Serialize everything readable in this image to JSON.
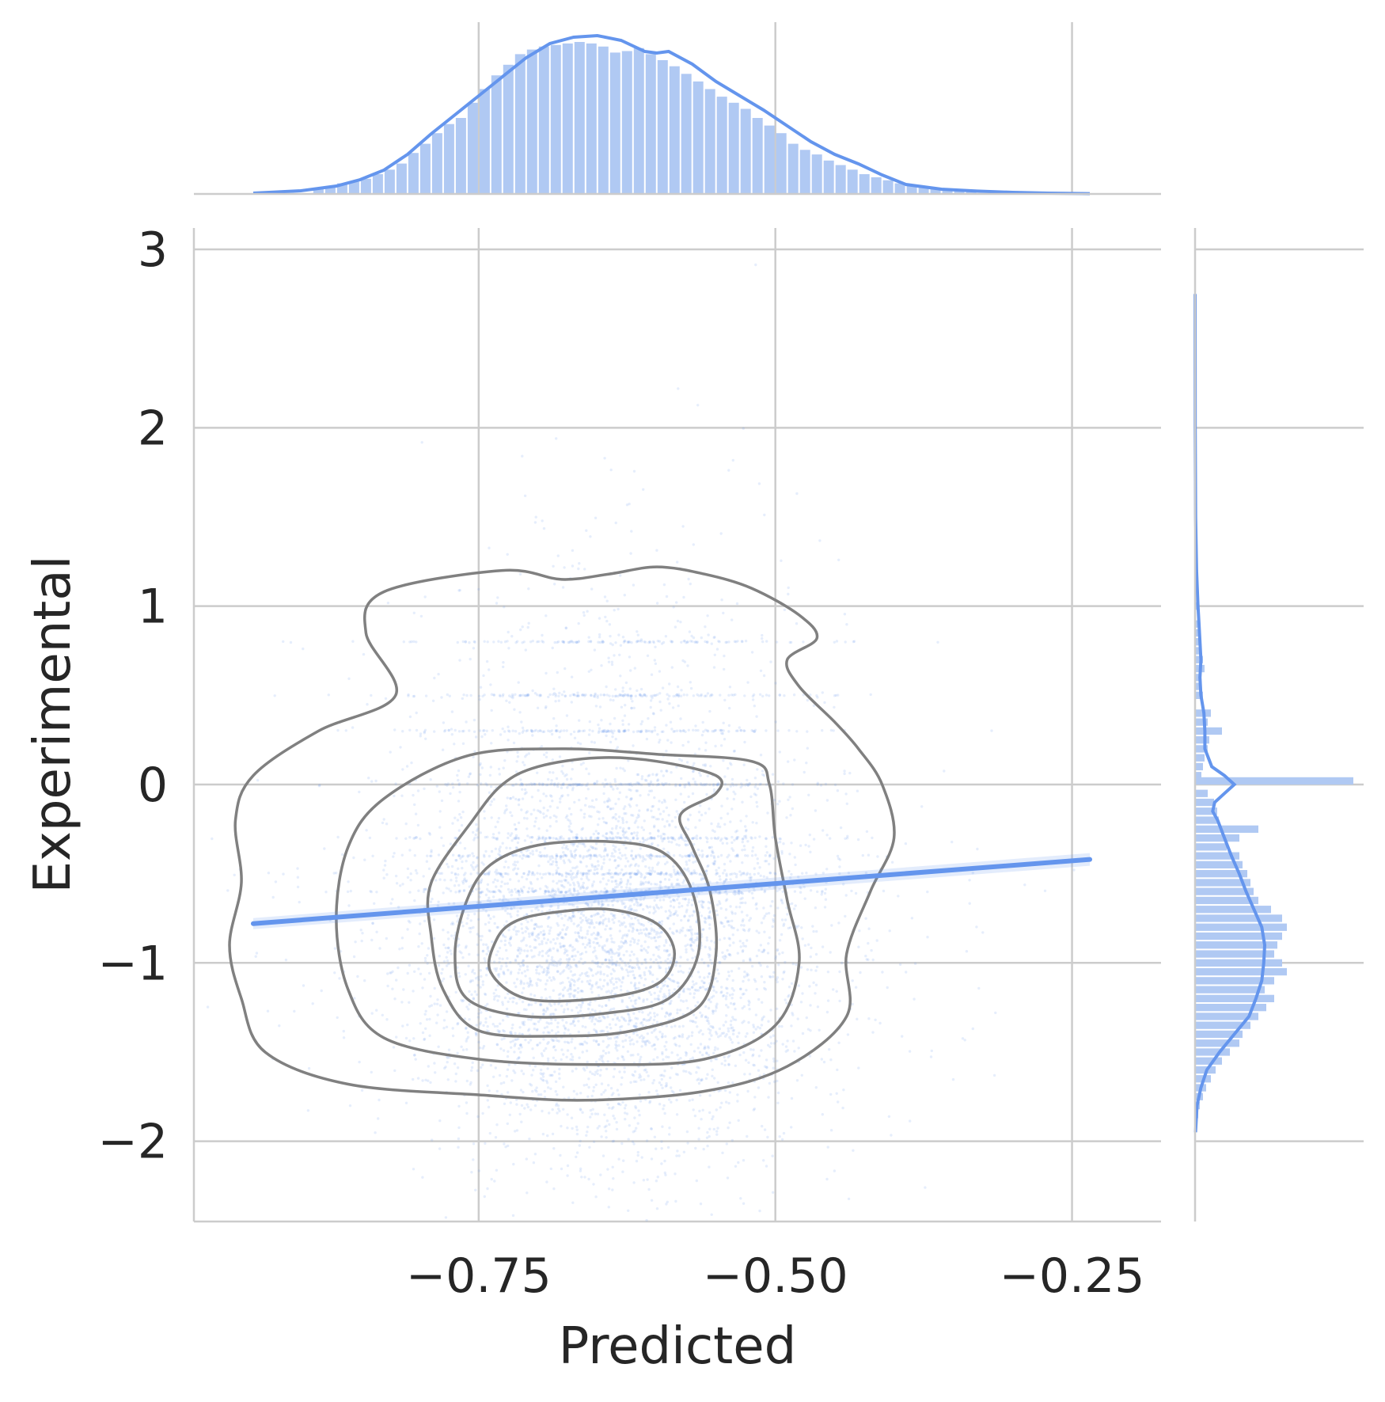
{
  "chart_data": {
    "type": "scatter",
    "kind": "joint plot (scatter + KDE contours + regression line + marginal histograms with KDE)",
    "xlabel": "Predicted",
    "ylabel": "Experimental",
    "xlim": [
      -0.99,
      -0.175
    ],
    "ylim": [
      -2.45,
      3.12
    ],
    "x_ticks": [
      -0.75,
      -0.5,
      -0.25
    ],
    "x_tick_labels": [
      "−0.75",
      "−0.50",
      "−0.25"
    ],
    "y_ticks": [
      -2,
      -1,
      0,
      1,
      2,
      3
    ],
    "y_tick_labels": [
      "−2",
      "−1",
      "0",
      "1",
      "2",
      "3"
    ],
    "grid": true,
    "colors": {
      "points": "#6495ED",
      "marginal_bars": "#b0c9f3",
      "contours": "#808080",
      "grid": "#cccccc"
    },
    "regression_line": {
      "x": [
        -0.94,
        -0.235
      ],
      "y": [
        -0.78,
        -0.42
      ]
    },
    "scatter_summary": {
      "n_points_approx": 6000,
      "x_mean": -0.64,
      "x_sd": 0.085,
      "y_mode": -0.95,
      "y_sd": 0.55,
      "note": "dense cloud with horizontal streaks at y = 0, -0.3, -0.5, 0.3, 0.5, 0.8"
    },
    "kde_contours": [
      {
        "level": 1,
        "points": [
          [
            -0.83,
            1.08
          ],
          [
            -0.73,
            1.2
          ],
          [
            -0.68,
            1.15
          ],
          [
            -0.64,
            1.18
          ],
          [
            -0.6,
            1.22
          ],
          [
            -0.56,
            1.18
          ],
          [
            -0.52,
            1.1
          ],
          [
            -0.48,
            0.95
          ],
          [
            -0.465,
            0.82
          ],
          [
            -0.49,
            0.7
          ],
          [
            -0.48,
            0.55
          ],
          [
            -0.45,
            0.35
          ],
          [
            -0.43,
            0.2
          ],
          [
            -0.41,
            0.0
          ],
          [
            -0.4,
            -0.3
          ],
          [
            -0.42,
            -0.6
          ],
          [
            -0.44,
            -0.95
          ],
          [
            -0.44,
            -1.3
          ],
          [
            -0.49,
            -1.58
          ],
          [
            -0.56,
            -1.72
          ],
          [
            -0.66,
            -1.77
          ],
          [
            -0.75,
            -1.74
          ],
          [
            -0.86,
            -1.68
          ],
          [
            -0.93,
            -1.5
          ],
          [
            -0.95,
            -1.2
          ],
          [
            -0.96,
            -0.9
          ],
          [
            -0.95,
            -0.55
          ],
          [
            -0.955,
            -0.2
          ],
          [
            -0.94,
            0.05
          ],
          [
            -0.885,
            0.3
          ],
          [
            -0.82,
            0.5
          ],
          [
            -0.845,
            0.85
          ]
        ]
      },
      {
        "level": 2,
        "points": [
          [
            -0.76,
            0.16
          ],
          [
            -0.68,
            0.2
          ],
          [
            -0.6,
            0.17
          ],
          [
            -0.52,
            0.13
          ],
          [
            -0.505,
            0.0
          ],
          [
            -0.5,
            -0.3
          ],
          [
            -0.49,
            -0.65
          ],
          [
            -0.48,
            -1.0
          ],
          [
            -0.5,
            -1.35
          ],
          [
            -0.56,
            -1.54
          ],
          [
            -0.65,
            -1.57
          ],
          [
            -0.75,
            -1.54
          ],
          [
            -0.83,
            -1.42
          ],
          [
            -0.86,
            -1.15
          ],
          [
            -0.87,
            -0.75
          ],
          [
            -0.86,
            -0.35
          ],
          [
            -0.83,
            -0.08
          ]
        ]
      },
      {
        "level": 3,
        "points": [
          [
            -0.7,
            0.1
          ],
          [
            -0.65,
            0.15
          ],
          [
            -0.6,
            0.13
          ],
          [
            -0.55,
            0.05
          ],
          [
            -0.55,
            -0.05
          ],
          [
            -0.58,
            -0.17
          ],
          [
            -0.57,
            -0.35
          ],
          [
            -0.555,
            -0.6
          ],
          [
            -0.55,
            -0.95
          ],
          [
            -0.565,
            -1.25
          ],
          [
            -0.62,
            -1.38
          ],
          [
            -0.68,
            -1.41
          ],
          [
            -0.75,
            -1.38
          ],
          [
            -0.78,
            -1.15
          ],
          [
            -0.79,
            -0.85
          ],
          [
            -0.79,
            -0.55
          ],
          [
            -0.755,
            -0.2
          ],
          [
            -0.73,
            0.0
          ]
        ]
      },
      {
        "level": 4,
        "points": [
          [
            -0.7,
            -0.34
          ],
          [
            -0.64,
            -0.32
          ],
          [
            -0.595,
            -0.38
          ],
          [
            -0.57,
            -0.6
          ],
          [
            -0.565,
            -0.95
          ],
          [
            -0.59,
            -1.2
          ],
          [
            -0.64,
            -1.28
          ],
          [
            -0.71,
            -1.3
          ],
          [
            -0.76,
            -1.2
          ],
          [
            -0.77,
            -0.95
          ],
          [
            -0.76,
            -0.65
          ],
          [
            -0.74,
            -0.45
          ]
        ]
      },
      {
        "level": 5,
        "points": [
          [
            -0.69,
            -0.72
          ],
          [
            -0.64,
            -0.7
          ],
          [
            -0.6,
            -0.78
          ],
          [
            -0.585,
            -0.95
          ],
          [
            -0.6,
            -1.12
          ],
          [
            -0.65,
            -1.2
          ],
          [
            -0.71,
            -1.2
          ],
          [
            -0.74,
            -1.05
          ],
          [
            -0.735,
            -0.87
          ],
          [
            -0.72,
            -0.77
          ]
        ]
      }
    ],
    "marginal_x": {
      "bins": {
        "x": [
          -0.885,
          -0.875,
          -0.865,
          -0.855,
          -0.845,
          -0.835,
          -0.825,
          -0.815,
          -0.805,
          -0.795,
          -0.785,
          -0.775,
          -0.765,
          -0.755,
          -0.745,
          -0.735,
          -0.725,
          -0.715,
          -0.705,
          -0.695,
          -0.685,
          -0.675,
          -0.665,
          -0.655,
          -0.645,
          -0.635,
          -0.625,
          -0.615,
          -0.605,
          -0.595,
          -0.585,
          -0.575,
          -0.565,
          -0.555,
          -0.545,
          -0.535,
          -0.525,
          -0.515,
          -0.505,
          -0.495,
          -0.485,
          -0.475,
          -0.465,
          -0.455,
          -0.445,
          -0.435,
          -0.425,
          -0.415,
          -0.405,
          -0.395,
          -0.385,
          -0.375,
          -0.365,
          -0.355,
          -0.345,
          -0.335
        ],
        "density": [
          0.04,
          0.05,
          0.07,
          0.08,
          0.1,
          0.13,
          0.16,
          0.2,
          0.27,
          0.33,
          0.4,
          0.46,
          0.5,
          0.6,
          0.69,
          0.78,
          0.85,
          0.92,
          0.95,
          0.97,
          0.98,
          0.99,
          1.0,
          0.99,
          0.97,
          0.93,
          0.94,
          0.96,
          0.92,
          0.88,
          0.84,
          0.79,
          0.74,
          0.69,
          0.64,
          0.6,
          0.56,
          0.5,
          0.45,
          0.4,
          0.33,
          0.29,
          0.26,
          0.22,
          0.19,
          0.16,
          0.13,
          0.11,
          0.09,
          0.07,
          0.06,
          0.05,
          0.04,
          0.03,
          0.02,
          0.015
        ]
      },
      "kde": {
        "x": [
          -0.94,
          -0.9,
          -0.87,
          -0.85,
          -0.83,
          -0.81,
          -0.79,
          -0.77,
          -0.75,
          -0.73,
          -0.71,
          -0.69,
          -0.67,
          -0.65,
          -0.63,
          -0.61,
          -0.6,
          -0.59,
          -0.57,
          -0.55,
          -0.53,
          -0.51,
          -0.49,
          -0.47,
          -0.45,
          -0.43,
          -0.41,
          -0.39,
          -0.36,
          -0.33,
          -0.3,
          -0.27,
          -0.235
        ],
        "density": [
          0.005,
          0.02,
          0.05,
          0.09,
          0.15,
          0.25,
          0.38,
          0.5,
          0.62,
          0.74,
          0.86,
          0.95,
          0.99,
          1.0,
          0.97,
          0.9,
          0.89,
          0.9,
          0.82,
          0.71,
          0.62,
          0.53,
          0.43,
          0.33,
          0.25,
          0.19,
          0.12,
          0.06,
          0.03,
          0.018,
          0.01,
          0.005,
          0.002
        ]
      }
    },
    "marginal_y": {
      "bins": {
        "y": [
          -1.9,
          -1.85,
          -1.8,
          -1.75,
          -1.7,
          -1.65,
          -1.6,
          -1.55,
          -1.5,
          -1.45,
          -1.4,
          -1.35,
          -1.3,
          -1.25,
          -1.2,
          -1.15,
          -1.1,
          -1.05,
          -1.0,
          -0.95,
          -0.9,
          -0.85,
          -0.8,
          -0.75,
          -0.7,
          -0.65,
          -0.6,
          -0.55,
          -0.5,
          -0.45,
          -0.4,
          -0.35,
          -0.3,
          -0.25,
          -0.2,
          -0.15,
          -0.1,
          -0.05,
          0.02,
          0.05,
          0.1,
          0.15,
          0.2,
          0.25,
          0.3,
          0.35,
          0.4,
          0.5,
          0.55,
          0.6,
          0.65,
          0.7,
          0.75,
          0.8,
          0.85,
          0.9,
          1.0
        ],
        "density": [
          0.01,
          0.02,
          0.03,
          0.05,
          0.07,
          0.1,
          0.13,
          0.17,
          0.22,
          0.28,
          0.3,
          0.35,
          0.4,
          0.45,
          0.5,
          0.44,
          0.5,
          0.58,
          0.55,
          0.5,
          0.52,
          0.55,
          0.58,
          0.55,
          0.48,
          0.4,
          0.37,
          0.35,
          0.33,
          0.3,
          0.28,
          0.2,
          0.28,
          0.4,
          0.15,
          0.14,
          0.12,
          0.08,
          1.0,
          0.04,
          0.05,
          0.06,
          0.08,
          0.09,
          0.17,
          0.08,
          0.1,
          0.05,
          0.04,
          0.03,
          0.06,
          0.05,
          0.03,
          0.03,
          0.02,
          0.02,
          0.01
        ]
      },
      "kde": {
        "y": [
          -1.95,
          -1.8,
          -1.7,
          -1.6,
          -1.5,
          -1.4,
          -1.3,
          -1.2,
          -1.1,
          -1.0,
          -0.9,
          -0.8,
          -0.7,
          -0.6,
          -0.5,
          -0.4,
          -0.3,
          -0.2,
          -0.15,
          -0.1,
          -0.05,
          0.0,
          0.05,
          0.1,
          0.2,
          0.3,
          0.4,
          0.5,
          0.6,
          0.7,
          0.8,
          0.9,
          1.0,
          1.2,
          1.5,
          2.0,
          2.5,
          2.75
        ],
        "density": [
          0.005,
          0.02,
          0.06,
          0.12,
          0.25,
          0.4,
          0.55,
          0.62,
          0.68,
          0.7,
          0.71,
          0.68,
          0.6,
          0.52,
          0.45,
          0.37,
          0.3,
          0.23,
          0.18,
          0.2,
          0.3,
          0.4,
          0.3,
          0.17,
          0.1,
          0.1,
          0.09,
          0.06,
          0.05,
          0.06,
          0.05,
          0.04,
          0.03,
          0.015,
          0.006,
          0.002,
          0.001,
          0.0005
        ]
      }
    }
  }
}
